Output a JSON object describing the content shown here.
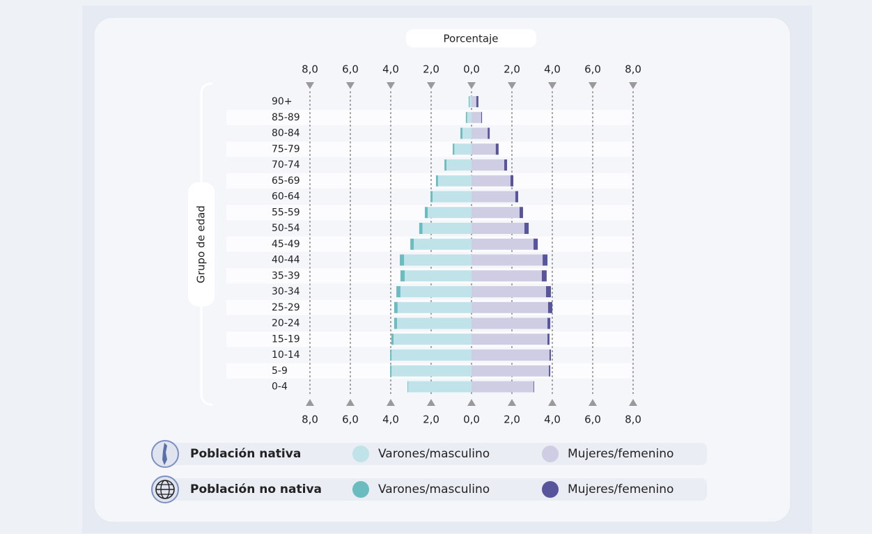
{
  "chart_data": {
    "type": "pyramid",
    "x_label": "Porcentaje",
    "y_label": "Grupo de edad",
    "categories": [
      "90+",
      "85-89",
      "80-84",
      "75-79",
      "70-74",
      "65-69",
      "60-64",
      "55-59",
      "50-54",
      "45-49",
      "40-44",
      "35-39",
      "30-34",
      "25-29",
      "20-24",
      "15-19",
      "10-14",
      "5-9",
      "0-4"
    ],
    "legend_groups": [
      "Población nativa",
      "Población no nativa"
    ],
    "series": [
      {
        "name": "Varones/masculino",
        "color": "#bfe3e8",
        "values": [
          0.1,
          0.22,
          0.45,
          0.85,
          1.24,
          1.66,
          1.93,
          2.17,
          2.43,
          2.86,
          3.34,
          3.31,
          3.52,
          3.66,
          3.69,
          3.86,
          3.96,
          3.96,
          3.14
        ]
      },
      {
        "name": "Mujeres/femenino",
        "color": "#cfcde3",
        "values": [
          0.24,
          0.48,
          0.8,
          1.2,
          1.62,
          1.93,
          2.17,
          2.38,
          2.62,
          3.07,
          3.52,
          3.48,
          3.69,
          3.79,
          3.76,
          3.76,
          3.86,
          3.83,
          3.07
        ]
      },
      {
        "name": "Varones/masculino",
        "color": "#6bbcc0",
        "values": [
          0.04,
          0.06,
          0.1,
          0.08,
          0.1,
          0.1,
          0.1,
          0.14,
          0.16,
          0.17,
          0.21,
          0.21,
          0.2,
          0.17,
          0.14,
          0.11,
          0.07,
          0.07,
          0.03
        ]
      },
      {
        "name": "Mujeres/femenino",
        "color": "#58559c",
        "values": [
          0.1,
          0.04,
          0.1,
          0.14,
          0.14,
          0.14,
          0.14,
          0.17,
          0.21,
          0.21,
          0.24,
          0.24,
          0.24,
          0.21,
          0.14,
          0.1,
          0.07,
          0.07,
          0.03
        ]
      }
    ],
    "xlim": [
      0,
      8
    ],
    "xticks": [
      {
        "value": 0,
        "label": "0,0"
      },
      {
        "value": 2,
        "label": "2,0"
      },
      {
        "value": 4,
        "label": "4,0"
      },
      {
        "value": 6,
        "label": "6,0"
      },
      {
        "value": 8,
        "label": "8,0"
      }
    ],
    "grid": true
  }
}
